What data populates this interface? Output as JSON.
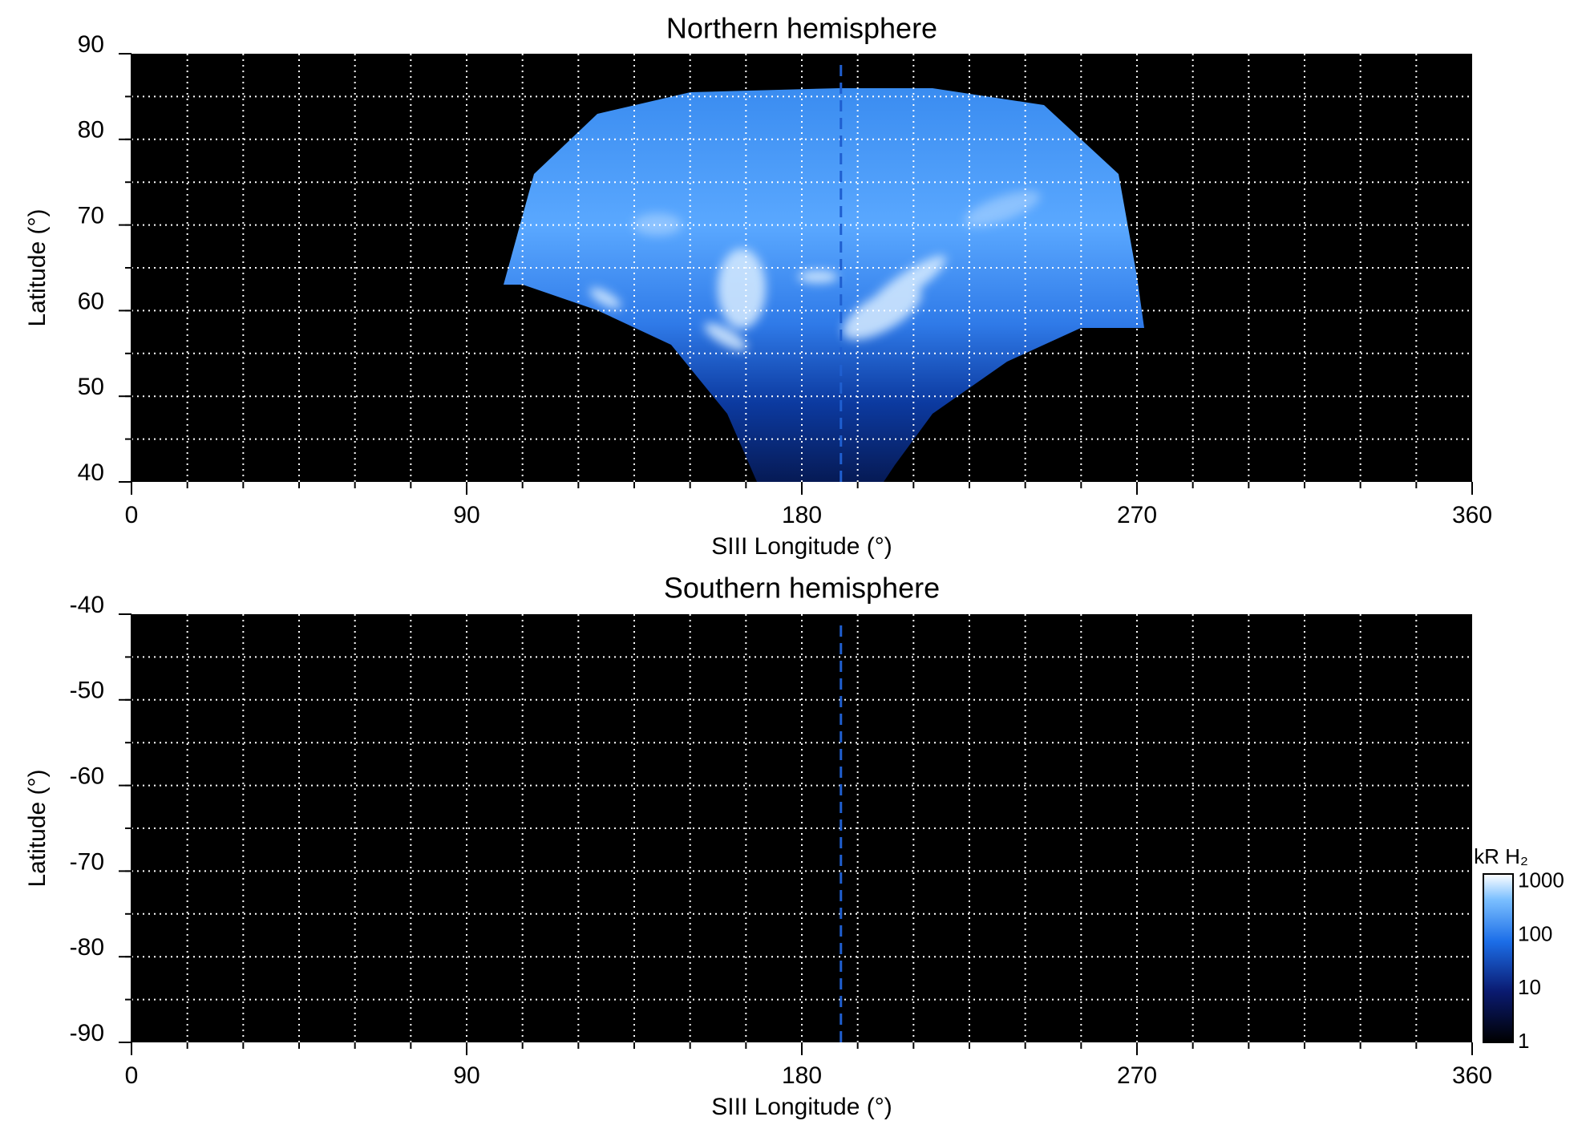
{
  "chart_data": [
    {
      "type": "map",
      "title": "Northern hemisphere",
      "xlabel": "SIII Longitude (°)",
      "ylabel": "Latitude (°)",
      "xlim": [
        0,
        360
      ],
      "xticks": [
        0,
        90,
        180,
        270,
        360
      ],
      "ylim": [
        40,
        90
      ],
      "yticks": [
        40,
        50,
        60,
        70,
        80,
        90
      ],
      "xgrid": [
        15,
        30,
        45,
        60,
        75,
        90,
        105,
        120,
        135,
        150,
        165,
        180,
        195,
        210,
        225,
        240,
        255,
        270,
        285,
        300,
        315,
        330,
        345
      ],
      "ygrid": [
        45,
        50,
        55,
        60,
        65,
        70,
        75,
        80,
        85
      ],
      "grid": true,
      "vline": 190.5,
      "vline_color": "#1f5fd0"
    },
    {
      "type": "map",
      "title": "Southern hemisphere",
      "xlabel": "SIII Longitude (°)",
      "ylabel": "Latitude (°)",
      "xlim": [
        0,
        360
      ],
      "xticks": [
        0,
        90,
        180,
        270,
        360
      ],
      "ylim": [
        -90,
        -40
      ],
      "yticks": [
        -90,
        -80,
        -70,
        -60,
        -50,
        -40
      ],
      "xgrid": [
        15,
        30,
        45,
        60,
        75,
        90,
        105,
        120,
        135,
        150,
        165,
        180,
        195,
        210,
        225,
        240,
        255,
        270,
        285,
        300,
        315,
        330,
        345
      ],
      "ygrid": [
        -85,
        -80,
        -75,
        -70,
        -65,
        -60,
        -55,
        -50,
        -45
      ],
      "grid": true,
      "vline": 190.5,
      "vline_color": "#1f5fd0",
      "colorbar": {
        "label": "kR H₂",
        "log": true,
        "lim": [
          1,
          1400
        ],
        "ticks": [
          1,
          10,
          100,
          1000
        ]
      }
    }
  ]
}
